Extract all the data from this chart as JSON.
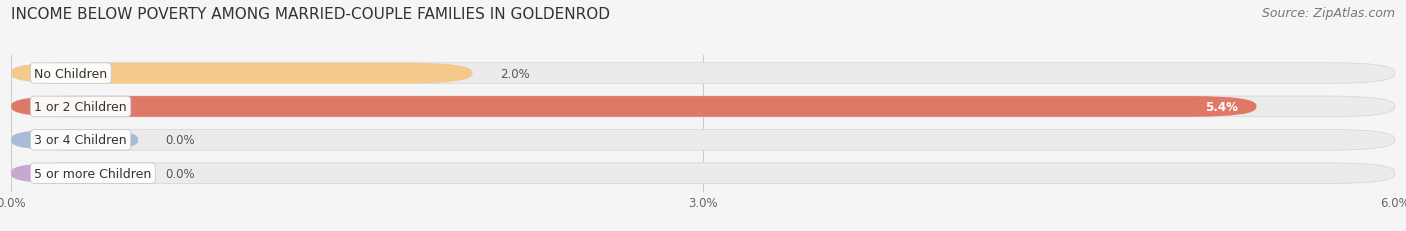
{
  "title": "INCOME BELOW POVERTY AMONG MARRIED-COUPLE FAMILIES IN GOLDENROD",
  "source": "Source: ZipAtlas.com",
  "categories": [
    "No Children",
    "1 or 2 Children",
    "3 or 4 Children",
    "5 or more Children"
  ],
  "values": [
    2.0,
    5.4,
    0.0,
    0.0
  ],
  "bar_colors": [
    "#f5c98a",
    "#e07868",
    "#a8bcd8",
    "#c8a8d0"
  ],
  "xlim": [
    0,
    6.0
  ],
  "xticks": [
    0.0,
    3.0,
    6.0
  ],
  "xticklabels": [
    "0.0%",
    "3.0%",
    "6.0%"
  ],
  "bar_height": 0.62,
  "background_color": "#f5f5f5",
  "title_fontsize": 11,
  "label_fontsize": 9,
  "value_fontsize": 8.5,
  "source_fontsize": 9,
  "zero_bar_width": 0.55
}
